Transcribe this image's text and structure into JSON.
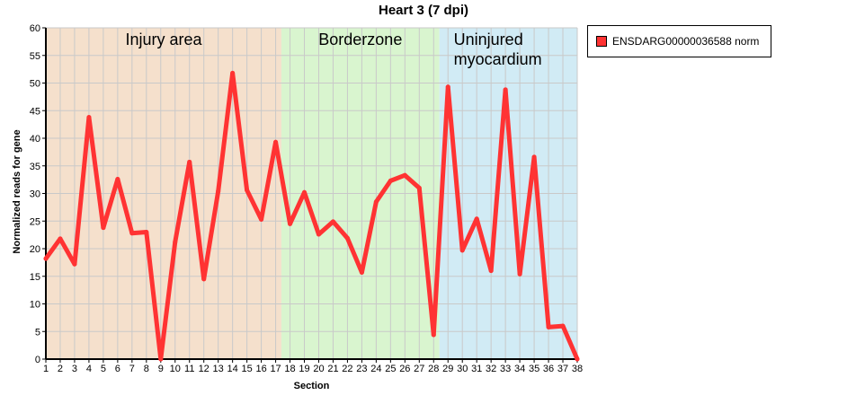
{
  "chart_data": {
    "type": "line",
    "title": "Heart 3 (7 dpi)",
    "xlabel": "Section",
    "ylabel": "Normalized reads for gene",
    "x": [
      1,
      2,
      3,
      4,
      5,
      6,
      7,
      8,
      9,
      10,
      11,
      12,
      13,
      14,
      15,
      16,
      17,
      18,
      19,
      20,
      21,
      22,
      23,
      24,
      25,
      26,
      27,
      28,
      29,
      30,
      31,
      32,
      33,
      34,
      35,
      36,
      37,
      38
    ],
    "xlim": [
      1,
      38
    ],
    "ylim": [
      0,
      60
    ],
    "y_ticks": [
      0,
      5,
      10,
      15,
      20,
      25,
      30,
      35,
      40,
      45,
      50,
      55,
      60
    ],
    "grid": true,
    "legend_position": "right",
    "series": [
      {
        "name": "ENSDARG00000036588 norm",
        "color": "#ff3333",
        "values": [
          18.2,
          21.8,
          17.2,
          43.8,
          23.8,
          32.6,
          22.8,
          23.0,
          0.0,
          21.2,
          35.7,
          14.5,
          30.4,
          51.8,
          30.6,
          25.3,
          39.3,
          24.5,
          30.2,
          22.6,
          24.9,
          21.9,
          15.7,
          28.5,
          32.3,
          33.3,
          31.0,
          4.4,
          49.3,
          19.7,
          25.4,
          16.0,
          48.8,
          15.4,
          36.6,
          5.8,
          6.0,
          0.0
        ]
      }
    ],
    "regions": [
      {
        "label_lines": [
          "Injury area"
        ],
        "from": 1,
        "to": 17.4,
        "color": "#f5e0cc"
      },
      {
        "label_lines": [
          "Borderzone"
        ],
        "from": 17.4,
        "to": 28.4,
        "color": "#d9f5cf"
      },
      {
        "label_lines": [
          "Uninjured",
          "myocardium"
        ],
        "from": 28.4,
        "to": 38,
        "color": "#d1ebf5"
      }
    ]
  }
}
